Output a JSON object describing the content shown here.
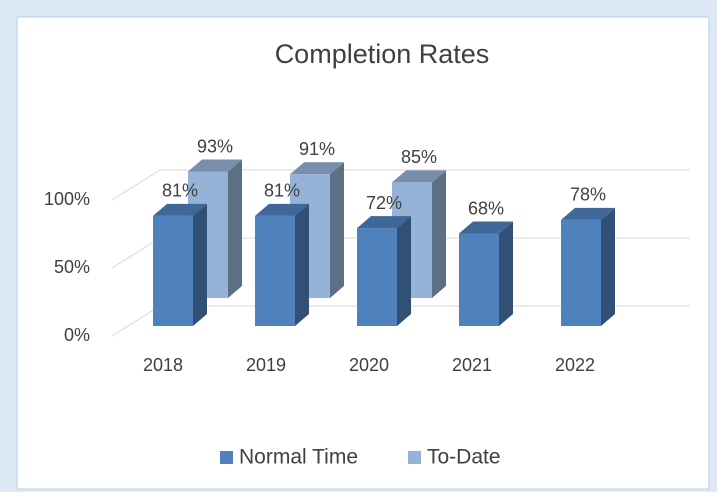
{
  "chart_data": {
    "type": "bar3d",
    "title": "Completion Rates",
    "categories": [
      "2018",
      "2019",
      "2020",
      "2021",
      "2022"
    ],
    "series": [
      {
        "name": "Normal Time",
        "color": "#4f81bd",
        "values": [
          81,
          81,
          72,
          68,
          78
        ],
        "value_labels": [
          "81%",
          "81%",
          "72%",
          "68%",
          "78%"
        ]
      },
      {
        "name": "To-Date",
        "color": "#95b3d7",
        "values": [
          93,
          91,
          85,
          null,
          null
        ],
        "value_labels": [
          "93%",
          "91%",
          "85%",
          null,
          null
        ]
      }
    ],
    "ylim": [
      0,
      100
    ],
    "yticks": [
      {
        "value": 0,
        "label": "0%"
      },
      {
        "value": 50,
        "label": "50%"
      },
      {
        "value": 100,
        "label": "100%"
      }
    ],
    "grid": true,
    "legend": "bottom"
  }
}
